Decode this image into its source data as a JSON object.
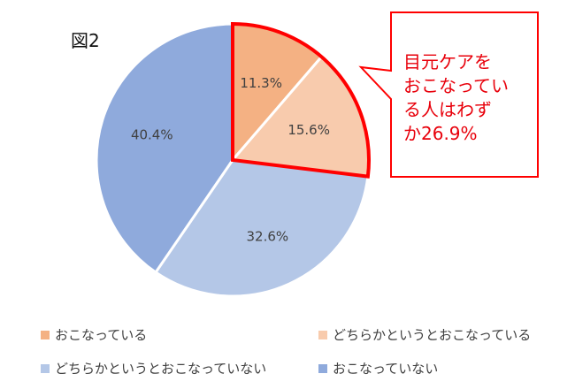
{
  "figure_label": "図2",
  "chart_data": {
    "type": "pie",
    "title": "",
    "slices": [
      {
        "name": "おこなっている",
        "value": 11.3,
        "label": "11.3%",
        "color": "#f4b183"
      },
      {
        "name": "どちらかというとおこなっている",
        "value": 15.6,
        "label": "15.6%",
        "color": "#f8cbad"
      },
      {
        "name": "どちらかというとおこなっていない",
        "value": 32.6,
        "label": "32.6%",
        "color": "#b4c7e7"
      },
      {
        "name": "おこなっていない",
        "value": 40.4,
        "label": "40.4%",
        "color": "#8faadc"
      }
    ],
    "legend_position": "bottom",
    "highlight": {
      "slices": [
        0,
        1
      ],
      "color": "#ff0000"
    },
    "callout": {
      "lines": [
        "目元ケアを",
        "おこなってい",
        "る人はわず",
        "か26.9%"
      ],
      "color": "#e8000b",
      "border_color": "#ff0000"
    }
  }
}
